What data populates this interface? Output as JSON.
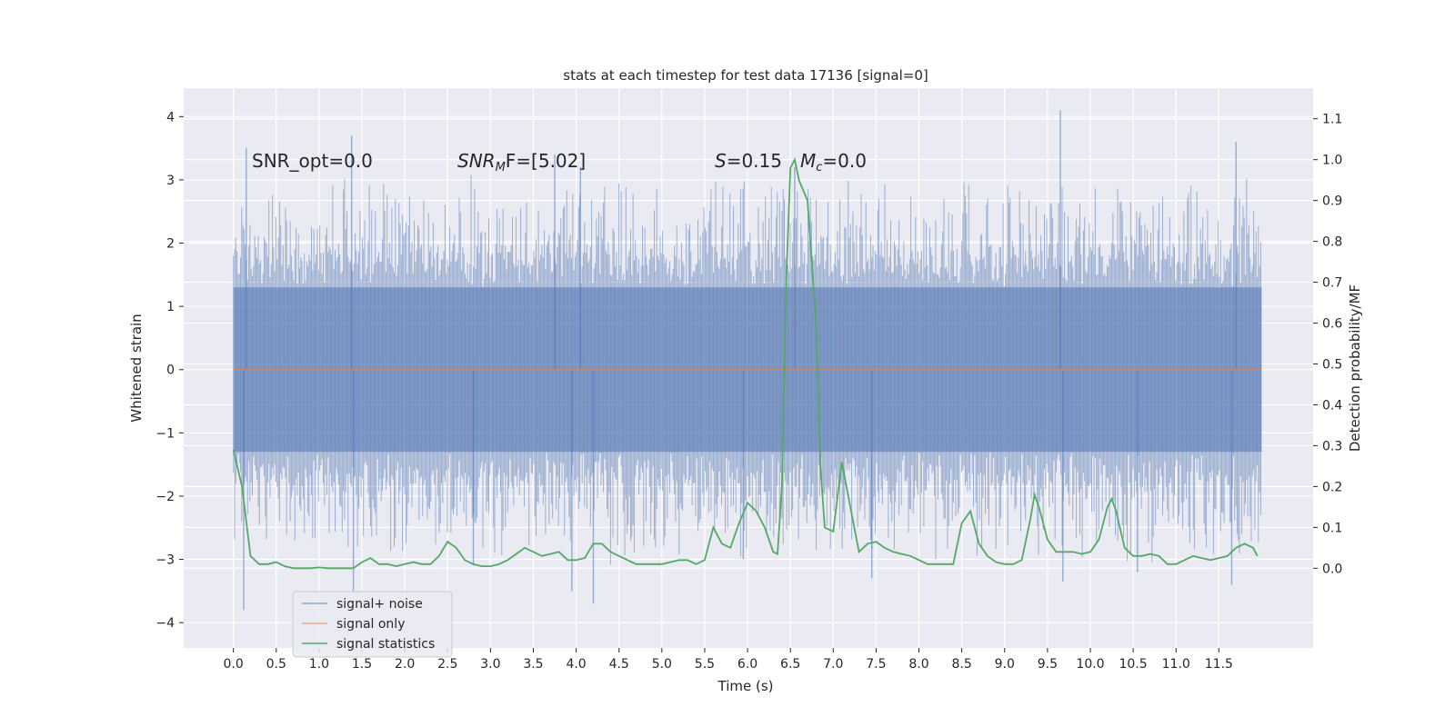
{
  "chart_data": {
    "type": "line",
    "title": "stats at each timestep for test data 17136 [signal=0]",
    "xlabel": "Time (s)",
    "ylabel": "Whitened strain",
    "y2label": "Detection probability/MF",
    "xlim": [
      -0.58,
      12.6
    ],
    "ylim": [
      -4.4,
      4.45
    ],
    "y2lim": [
      -0.195,
      1.175
    ],
    "x_ticks": [
      0.0,
      0.5,
      1.0,
      1.5,
      2.0,
      2.5,
      3.0,
      3.5,
      4.0,
      4.5,
      5.0,
      5.5,
      6.0,
      6.5,
      7.0,
      7.5,
      8.0,
      8.5,
      9.0,
      9.5,
      10.0,
      10.5,
      11.0,
      11.5
    ],
    "x_tick_labels": [
      "0.0",
      "0.5",
      "1.0",
      "1.5",
      "2.0",
      "2.5",
      "3.0",
      "3.5",
      "4.0",
      "4.5",
      "5.0",
      "5.5",
      "6.0",
      "6.5",
      "7.0",
      "7.5",
      "8.0",
      "8.5",
      "9.0",
      "9.5",
      "10.0",
      "10.5",
      "11.0",
      "11.5"
    ],
    "y_ticks": [
      -4,
      -3,
      -2,
      -1,
      0,
      1,
      2,
      3,
      4
    ],
    "y_tick_labels": [
      "−4",
      "−3",
      "−2",
      "−1",
      "0",
      "1",
      "2",
      "3",
      "4"
    ],
    "y2_ticks": [
      0.0,
      0.1,
      0.2,
      0.3,
      0.4,
      0.5,
      0.6,
      0.7,
      0.8,
      0.9,
      1.0,
      1.1
    ],
    "y2_tick_labels": [
      "0.0",
      "0.1",
      "0.2",
      "0.3",
      "0.4",
      "0.5",
      "0.6",
      "0.7",
      "0.8",
      "0.9",
      "1.0",
      "1.1"
    ],
    "grid": true,
    "legend_position": "lower-left",
    "annotations": {
      "snr_opt": "SNR_opt=0.0",
      "snr_mf_main": "SNR",
      "snr_mf_sub": "M",
      "snr_mf_rest": "F=[5.02]",
      "s_main": "S",
      "s_rest": "=0.15",
      "mc_main": "M",
      "mc_sub": "c",
      "mc_rest": "=0.0"
    },
    "noise_envelope": {
      "x_range": [
        0.0,
        12.0
      ],
      "band": [
        -1.3,
        1.3
      ],
      "typical_peak": [
        1.8,
        2.6
      ],
      "outlier_spikes": [
        {
          "x": 0.12,
          "y": -3.8
        },
        {
          "x": 0.15,
          "y": 3.5
        },
        {
          "x": 1.38,
          "y": 3.7
        },
        {
          "x": 1.4,
          "y": -3.5
        },
        {
          "x": 3.75,
          "y": 3.4
        },
        {
          "x": 3.95,
          "y": -3.5
        },
        {
          "x": 4.2,
          "y": -3.7
        },
        {
          "x": 4.05,
          "y": 3.2
        },
        {
          "x": 6.55,
          "y": 3.2
        },
        {
          "x": 9.65,
          "y": 4.1
        },
        {
          "x": 9.68,
          "y": -3.35
        },
        {
          "x": 11.7,
          "y": 3.6
        },
        {
          "x": 11.65,
          "y": -3.4
        },
        {
          "x": 7.45,
          "y": -3.3
        },
        {
          "x": 5.95,
          "y": -3.0
        },
        {
          "x": 10.55,
          "y": -3.2
        },
        {
          "x": 2.8,
          "y": -3.1
        }
      ]
    },
    "series": [
      {
        "name": "signal+ noise",
        "color": "#4c72b0",
        "axis": "left",
        "style": "noise"
      },
      {
        "name": "signal only",
        "color": "#dd8452",
        "axis": "left",
        "x": [
          0.0,
          12.0
        ],
        "y": [
          0.0,
          0.0
        ]
      },
      {
        "name": "signal statistics",
        "color": "#55a868",
        "axis": "right",
        "x": [
          0.0,
          0.1,
          0.2,
          0.3,
          0.4,
          0.5,
          0.6,
          0.7,
          0.8,
          0.9,
          1.0,
          1.1,
          1.2,
          1.3,
          1.4,
          1.5,
          1.6,
          1.7,
          1.8,
          1.9,
          2.0,
          2.1,
          2.2,
          2.3,
          2.4,
          2.5,
          2.6,
          2.7,
          2.8,
          2.9,
          3.0,
          3.1,
          3.2,
          3.3,
          3.4,
          3.5,
          3.6,
          3.7,
          3.8,
          3.9,
          4.0,
          4.1,
          4.2,
          4.3,
          4.4,
          4.5,
          4.6,
          4.7,
          4.8,
          4.9,
          5.0,
          5.1,
          5.2,
          5.3,
          5.4,
          5.5,
          5.6,
          5.7,
          5.8,
          5.9,
          6.0,
          6.1,
          6.2,
          6.3,
          6.35,
          6.4,
          6.45,
          6.5,
          6.55,
          6.6,
          6.7,
          6.8,
          6.85,
          6.9,
          7.0,
          7.1,
          7.2,
          7.3,
          7.4,
          7.5,
          7.6,
          7.7,
          7.8,
          7.9,
          8.0,
          8.1,
          8.2,
          8.3,
          8.4,
          8.5,
          8.6,
          8.7,
          8.8,
          8.9,
          9.0,
          9.1,
          9.2,
          9.3,
          9.35,
          9.4,
          9.5,
          9.6,
          9.7,
          9.8,
          9.9,
          10.0,
          10.1,
          10.2,
          10.25,
          10.3,
          10.4,
          10.5,
          10.6,
          10.7,
          10.8,
          10.9,
          11.0,
          11.1,
          11.2,
          11.3,
          11.4,
          11.5,
          11.6,
          11.7,
          11.8,
          11.9,
          11.95
        ],
        "y": [
          0.29,
          0.2,
          0.03,
          0.01,
          0.01,
          0.015,
          0.005,
          0.0,
          0.0,
          0.0,
          0.002,
          0.0,
          0.0,
          0.0,
          0.0,
          0.015,
          0.025,
          0.01,
          0.01,
          0.005,
          0.01,
          0.015,
          0.01,
          0.01,
          0.03,
          0.065,
          0.05,
          0.02,
          0.01,
          0.005,
          0.005,
          0.01,
          0.02,
          0.035,
          0.05,
          0.04,
          0.03,
          0.035,
          0.04,
          0.02,
          0.02,
          0.025,
          0.06,
          0.06,
          0.04,
          0.03,
          0.02,
          0.01,
          0.01,
          0.01,
          0.01,
          0.015,
          0.02,
          0.02,
          0.01,
          0.02,
          0.1,
          0.06,
          0.05,
          0.11,
          0.16,
          0.14,
          0.1,
          0.04,
          0.035,
          0.2,
          0.7,
          0.98,
          1.0,
          0.95,
          0.9,
          0.6,
          0.25,
          0.1,
          0.09,
          0.26,
          0.15,
          0.04,
          0.06,
          0.065,
          0.05,
          0.04,
          0.035,
          0.03,
          0.02,
          0.01,
          0.01,
          0.01,
          0.01,
          0.11,
          0.14,
          0.06,
          0.03,
          0.015,
          0.01,
          0.01,
          0.02,
          0.12,
          0.18,
          0.15,
          0.07,
          0.04,
          0.04,
          0.04,
          0.035,
          0.04,
          0.07,
          0.15,
          0.17,
          0.14,
          0.05,
          0.03,
          0.03,
          0.035,
          0.03,
          0.01,
          0.01,
          0.02,
          0.03,
          0.025,
          0.02,
          0.025,
          0.03,
          0.05,
          0.06,
          0.05,
          0.03
        ]
      }
    ]
  }
}
